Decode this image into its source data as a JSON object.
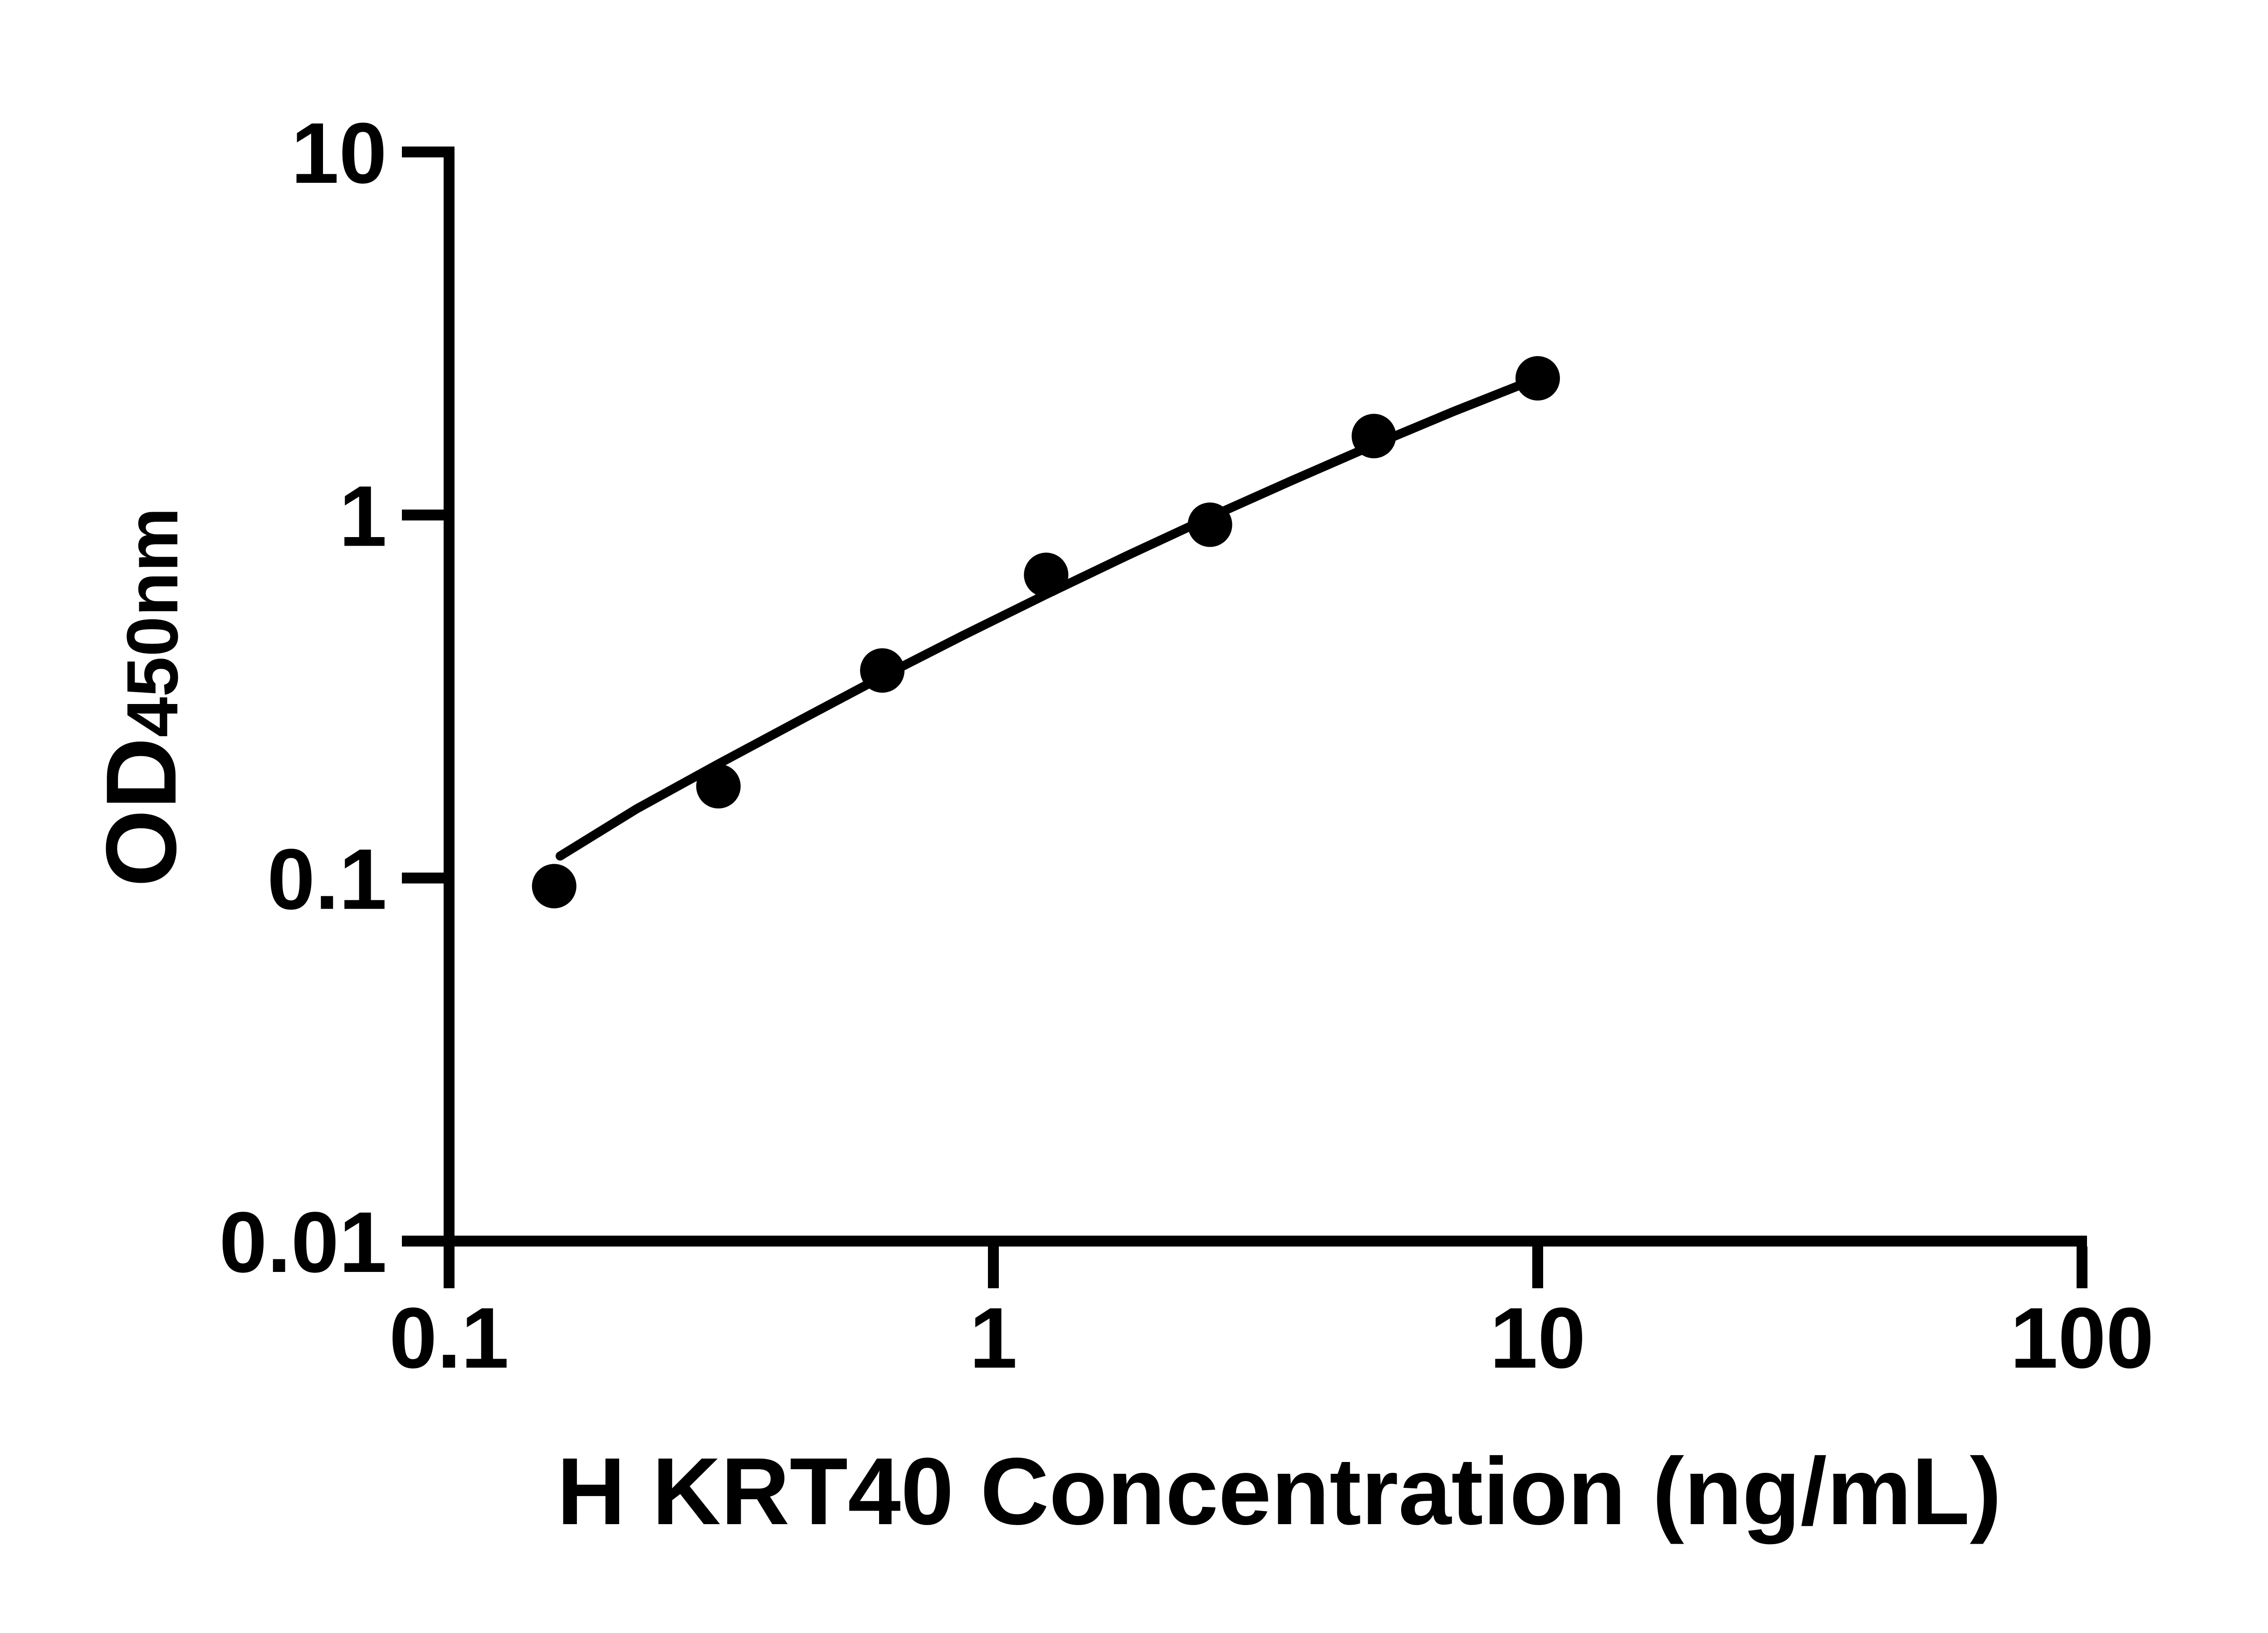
{
  "figure": {
    "background_color": "#ffffff",
    "ink_color": "#000000"
  },
  "chart_data": {
    "type": "scatter",
    "title": "",
    "xlabel": "H KRT40 Concentration (ng/mL)",
    "ylabel": "OD450nm",
    "ylabel_main": "OD",
    "ylabel_subscript": "450nm",
    "x_scale": "log10",
    "y_scale": "log10",
    "xlim": [
      0.1,
      100
    ],
    "ylim": [
      0.01,
      10
    ],
    "grid": false,
    "legend_position": "none",
    "x_ticks": [
      {
        "value": 0.1,
        "label": "0.1"
      },
      {
        "value": 1,
        "label": "1"
      },
      {
        "value": 10,
        "label": "10"
      },
      {
        "value": 100,
        "label": "100"
      }
    ],
    "y_ticks": [
      {
        "value": 0.01,
        "label": "0.01"
      },
      {
        "value": 0.1,
        "label": "0.1"
      },
      {
        "value": 1,
        "label": "1"
      },
      {
        "value": 10,
        "label": "10"
      }
    ],
    "series": [
      {
        "name": "standard data points",
        "type": "scatter",
        "marker": "filled-circle",
        "color": "#000000",
        "x": [
          0.156,
          0.3125,
          0.625,
          1.25,
          2.5,
          5,
          10
        ],
        "y": [
          0.095,
          0.179,
          0.373,
          0.684,
          0.94,
          1.65,
          2.38
        ]
      },
      {
        "name": "fitted standard curve",
        "type": "line",
        "color": "#000000",
        "x": [
          0.16,
          0.221,
          0.312,
          0.441,
          0.623,
          0.88,
          1.244,
          1.758,
          2.483,
          3.508,
          4.956,
          7.002,
          9.95
        ],
        "y": [
          0.115,
          0.155,
          0.206,
          0.272,
          0.358,
          0.466,
          0.602,
          0.772,
          0.982,
          1.238,
          1.552,
          1.928,
          2.375
        ]
      }
    ]
  }
}
